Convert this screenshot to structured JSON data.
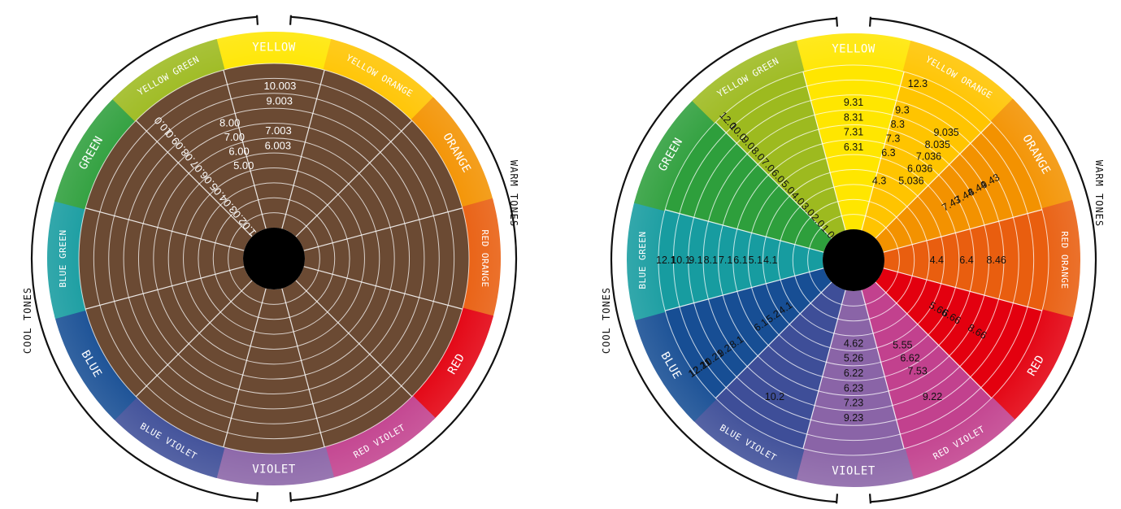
{
  "segments": [
    {
      "key": "yellow",
      "label": "YELLOW",
      "color": "#FFE600"
    },
    {
      "key": "yellow_orange",
      "label": "YELLOW ORANGE",
      "color": "#FFC400"
    },
    {
      "key": "orange",
      "label": "ORANGE",
      "color": "#F39200"
    },
    {
      "key": "red_orange",
      "label": "RED ORANGE",
      "color": "#E95E0F"
    },
    {
      "key": "red",
      "label": "RED",
      "color": "#E3000F"
    },
    {
      "key": "red_violet",
      "label": "RED VIOLET",
      "color": "#C2418E"
    },
    {
      "key": "violet",
      "label": "VIOLET",
      "color": "#8A64A7"
    },
    {
      "key": "blue_violet",
      "label": "BLUE VIOLET",
      "color": "#3E4E98"
    },
    {
      "key": "blue",
      "label": "BLUE",
      "color": "#174E94"
    },
    {
      "key": "blue_green",
      "label": "BLUE GREEN",
      "color": "#179CA0"
    },
    {
      "key": "green",
      "label": "GREEN",
      "color": "#2E9F3C"
    },
    {
      "key": "yellow_green",
      "label": "YELLOW GREEN",
      "color": "#9DBA1F"
    }
  ],
  "tones": {
    "warm": "WARM TONES",
    "cool": "COOL TONES"
  },
  "left_wheel": {
    "fill_color": "#6B4A33",
    "levels_yellow": [
      "10.003",
      "9.003",
      "7.003",
      "6.003"
    ],
    "levels_yellow_green": [
      "8.00",
      "7.00",
      "6.00",
      "5.00"
    ],
    "levels_green": [
      "10.0",
      "9.0",
      "8.0",
      "7.0",
      "6.0",
      "5.0",
      "4.0",
      "3.0",
      "2.0",
      "1.0"
    ]
  },
  "right_wheel": {
    "levels_yellow": [
      "9.31",
      "8.31",
      "7.31",
      "6.31"
    ],
    "level_yellow_top": "12.3",
    "levels_yellow_orange": [
      "9.3",
      "8.3",
      "7.3",
      "6.3",
      "4.3"
    ],
    "levels_yellow_orange_b": [
      "9.035",
      "8.035",
      "7.036",
      "6.036",
      "5.036"
    ],
    "levels_orange": [
      "9.43",
      "8.44",
      "7.44",
      "7.43"
    ],
    "levels_red_orange": [
      "8.46",
      "6.4",
      "4.4"
    ],
    "levels_red": [
      "8.66",
      "6.66",
      "5.66"
    ],
    "levels_red_violet": [
      "5.55",
      "6.62",
      "7.53",
      "9.22"
    ],
    "levels_violet": [
      "4.62",
      "5.26",
      "6.22",
      "6.23",
      "7.23",
      "9.23"
    ],
    "levels_blue_violet": [
      "10.2"
    ],
    "levels_blue": [
      "12.11",
      "10.21",
      "12.21",
      "9.2",
      "8.1",
      "6.1",
      "4.1",
      "5.2"
    ],
    "levels_blue_green": [
      "12.1",
      "10.1",
      "9.1",
      "8.1",
      "7.1",
      "6.1",
      "5.1",
      "4.1"
    ],
    "levels_green": [
      "12.0",
      "10.0",
      "9.0",
      "8.0",
      "7.0",
      "6.0",
      "5.0",
      "4.0",
      "3.0",
      "2.0",
      "1.0"
    ]
  }
}
